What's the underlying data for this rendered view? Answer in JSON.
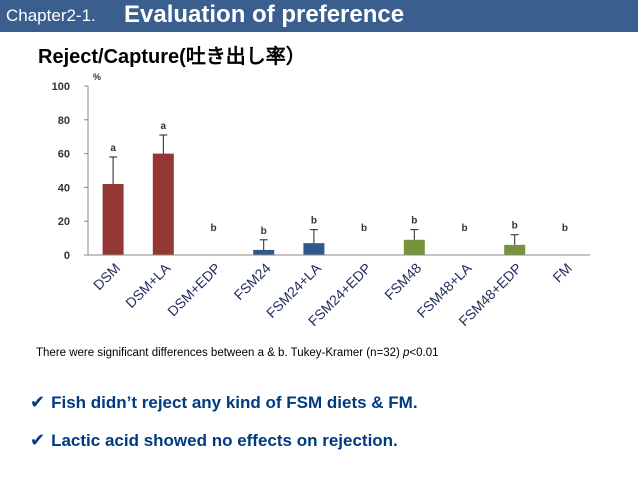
{
  "header": {
    "prefix": "Chapter2-1.",
    "title": "Evaluation of preference"
  },
  "subtitle": "Reject/Capture(吐き出し率）",
  "chart_data": {
    "type": "bar",
    "ylabel": "%",
    "ylim": [
      0,
      100
    ],
    "yticks": [
      "0",
      "20",
      "40",
      "60",
      "80",
      "100"
    ],
    "categories": [
      "DSM",
      "DSM+LA",
      "DSM+EDP",
      "FSM24",
      "FSM24+LA",
      "FSM24+EDP",
      "FSM48",
      "FSM48+LA",
      "FSM48+EDP",
      "FM"
    ],
    "values": [
      42,
      60,
      0,
      3,
      7,
      0,
      9,
      0,
      6,
      0
    ],
    "errors": [
      16,
      11,
      0,
      6,
      8,
      0,
      6,
      0,
      6,
      0
    ],
    "letters": [
      "a",
      "a",
      "b",
      "b",
      "b",
      "b",
      "b",
      "b",
      "b",
      "b"
    ],
    "colors": [
      "#953735",
      "#953735",
      "#953735",
      "#2e5a8a",
      "#2e5a8a",
      "#2e5a8a",
      "#77933c",
      "#77933c",
      "#77933c",
      "#777777"
    ],
    "grid": false,
    "legend": "none"
  },
  "note": {
    "text": "There were significant differences between a & b.  Tukey-Kramer (n=32) ",
    "p": "p",
    "threshold": "<0.01"
  },
  "conclusions": [
    {
      "check": "✔",
      "text": "Fish didn’t reject any kind of FSM diets & FM."
    },
    {
      "check": "✔",
      "text": "Lactic acid showed no effects on rejection."
    }
  ]
}
